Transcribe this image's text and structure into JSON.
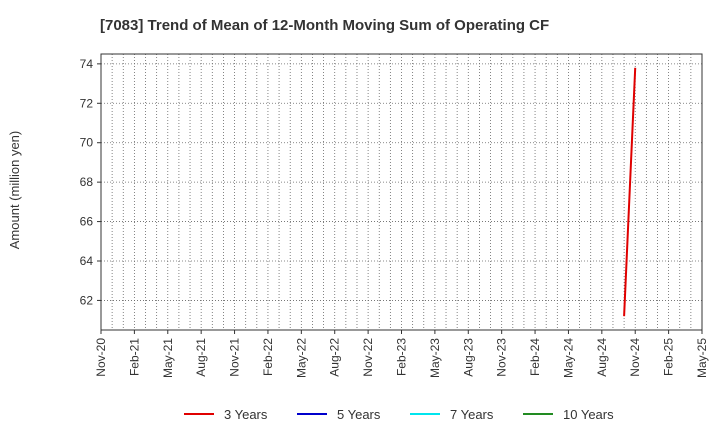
{
  "chart_data": {
    "type": "line",
    "title": "[7083]  Trend of Mean of 12-Month Moving Sum of Operating CF",
    "xlabel": "",
    "ylabel": "Amount (million yen)",
    "x_tick_labels": [
      "Nov-20",
      "Feb-21",
      "May-21",
      "Aug-21",
      "Nov-21",
      "Feb-22",
      "May-22",
      "Aug-22",
      "Nov-22",
      "Feb-23",
      "May-23",
      "Aug-23",
      "Nov-23",
      "Feb-24",
      "May-24",
      "Aug-24",
      "Nov-24",
      "Feb-25",
      "May-25"
    ],
    "xlim": [
      "2020-11",
      "2025-05"
    ],
    "y_ticks": [
      62,
      64,
      66,
      68,
      70,
      72,
      74
    ],
    "ylim": [
      60.5,
      74.5
    ],
    "grid": true,
    "legend_position": "bottom",
    "series": [
      {
        "name": "3 Years",
        "color": "#e00000",
        "points": [
          {
            "x": "2024-10",
            "y": 61.2
          },
          {
            "x": "2024-11",
            "y": 73.8
          }
        ]
      },
      {
        "name": "5 Years",
        "color": "#0000cc",
        "points": []
      },
      {
        "name": "7 Years",
        "color": "#00e5ee",
        "points": []
      },
      {
        "name": "10 Years",
        "color": "#228b22",
        "points": []
      }
    ]
  }
}
